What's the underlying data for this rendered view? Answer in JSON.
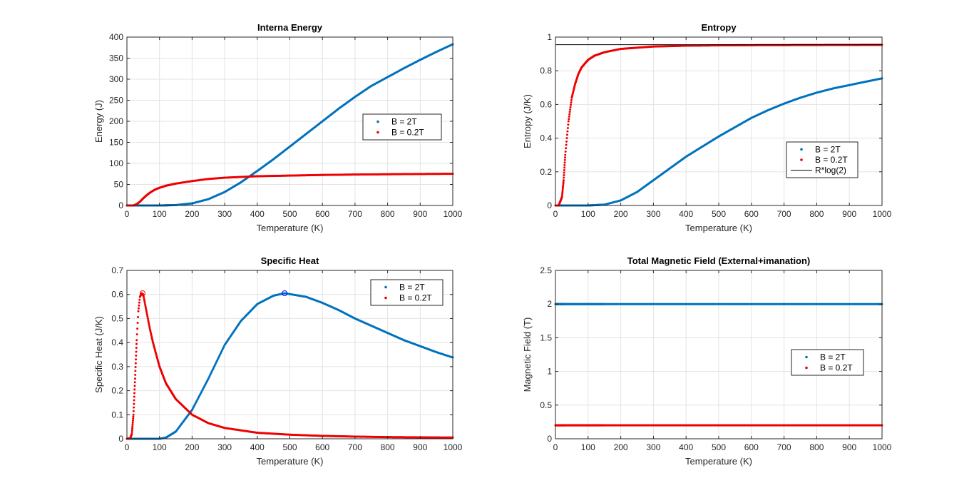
{
  "figure": {
    "colors": {
      "blue": "#0072BD",
      "red": "#EE0000",
      "black": "#000000",
      "grid": "#E3E3E3",
      "axis": "#262626"
    }
  },
  "chart_data": [
    {
      "id": "energy",
      "type": "scatter",
      "title": "Interna Energy",
      "xlabel": "Temperature (K)",
      "ylabel": "Energy (J)",
      "xlim": [
        0,
        1000
      ],
      "ylim": [
        0,
        400
      ],
      "xticks": [
        0,
        100,
        200,
        300,
        400,
        500,
        600,
        700,
        800,
        900,
        1000
      ],
      "yticks": [
        0,
        50,
        100,
        150,
        200,
        250,
        300,
        350,
        400
      ],
      "grid": true,
      "legend_position": "right-middle",
      "series": [
        {
          "name": "B = 2T",
          "color": "#0072BD",
          "marker": "dot",
          "x": [
            0,
            100,
            150,
            200,
            250,
            300,
            350,
            400,
            450,
            500,
            550,
            600,
            650,
            700,
            750,
            800,
            850,
            900,
            950,
            1000
          ],
          "y": [
            0,
            0,
            1,
            5,
            15,
            32,
            55,
            82,
            110,
            140,
            170,
            200,
            230,
            258,
            284,
            305,
            326,
            346,
            365,
            383
          ]
        },
        {
          "name": "B = 0.2T",
          "color": "#EE0000",
          "marker": "dot",
          "x": [
            0,
            20,
            30,
            40,
            50,
            60,
            70,
            80,
            90,
            100,
            120,
            150,
            200,
            250,
            300,
            400,
            500,
            600,
            700,
            800,
            900,
            1000
          ],
          "y": [
            0,
            0,
            3,
            9,
            17,
            24,
            30,
            35,
            39,
            42,
            47,
            52,
            58,
            63,
            66,
            69.5,
            71,
            72.5,
            73.5,
            74.2,
            74.8,
            75.3
          ]
        }
      ]
    },
    {
      "id": "entropy",
      "type": "scatter",
      "title": "Entropy",
      "xlabel": "Temperature (K)",
      "ylabel": "Entropy (J/K)",
      "xlim": [
        0,
        1000
      ],
      "ylim": [
        0,
        1
      ],
      "xticks": [
        0,
        100,
        200,
        300,
        400,
        500,
        600,
        700,
        800,
        900,
        1000
      ],
      "yticks": [
        0,
        0.2,
        0.4,
        0.6,
        0.8,
        1
      ],
      "grid": true,
      "legend_position": "bottom-right",
      "series": [
        {
          "name": "B = 2T",
          "color": "#0072BD",
          "marker": "dot",
          "x": [
            0,
            100,
            150,
            200,
            250,
            300,
            350,
            400,
            450,
            500,
            550,
            600,
            650,
            700,
            750,
            800,
            850,
            900,
            950,
            1000
          ],
          "y": [
            0,
            0,
            0.005,
            0.03,
            0.08,
            0.15,
            0.22,
            0.29,
            0.35,
            0.41,
            0.465,
            0.52,
            0.565,
            0.605,
            0.64,
            0.67,
            0.695,
            0.715,
            0.735,
            0.755
          ]
        },
        {
          "name": "B = 0.2T",
          "color": "#EE0000",
          "marker": "dot",
          "x": [
            0,
            10,
            20,
            25,
            30,
            40,
            50,
            60,
            70,
            80,
            100,
            120,
            150,
            200,
            300,
            400,
            500,
            600,
            800,
            1000
          ],
          "y": [
            0,
            0,
            0.05,
            0.15,
            0.3,
            0.5,
            0.64,
            0.72,
            0.78,
            0.82,
            0.865,
            0.89,
            0.91,
            0.93,
            0.944,
            0.949,
            0.951,
            0.952,
            0.953,
            0.954
          ]
        },
        {
          "name": "R*log(2)",
          "color": "#000000",
          "marker": "line",
          "x": [
            0,
            1000
          ],
          "y": [
            0.955,
            0.955
          ]
        }
      ]
    },
    {
      "id": "specific_heat",
      "type": "scatter",
      "title": "Specific Heat",
      "xlabel": "Temperature (K)",
      "ylabel": "Specific Heat (J/K)",
      "xlim": [
        0,
        1000
      ],
      "ylim": [
        0,
        0.7
      ],
      "xticks": [
        0,
        100,
        200,
        300,
        400,
        500,
        600,
        700,
        800,
        900,
        1000
      ],
      "yticks": [
        0,
        0.1,
        0.2,
        0.3,
        0.4,
        0.5,
        0.6,
        0.7
      ],
      "grid": true,
      "legend_position": "top-right",
      "series": [
        {
          "name": "B = 2T",
          "color": "#0072BD",
          "marker": "dot",
          "x": [
            0,
            100,
            120,
            150,
            200,
            250,
            300,
            350,
            400,
            450,
            484,
            550,
            600,
            650,
            700,
            750,
            800,
            850,
            900,
            950,
            1000
          ],
          "y": [
            0,
            0,
            0.005,
            0.03,
            0.12,
            0.25,
            0.39,
            0.49,
            0.56,
            0.595,
            0.605,
            0.59,
            0.565,
            0.535,
            0.5,
            0.47,
            0.44,
            0.41,
            0.385,
            0.36,
            0.338
          ]
        },
        {
          "name": "B = 0.2T",
          "color": "#EE0000",
          "marker": "dot",
          "x": [
            0,
            10,
            15,
            20,
            25,
            30,
            35,
            40,
            45,
            50,
            60,
            70,
            80,
            100,
            120,
            150,
            200,
            250,
            300,
            400,
            500,
            600,
            700,
            800,
            900,
            1000
          ],
          "y": [
            0,
            0.002,
            0.02,
            0.1,
            0.25,
            0.41,
            0.53,
            0.59,
            0.605,
            0.6,
            0.53,
            0.46,
            0.4,
            0.3,
            0.23,
            0.165,
            0.1,
            0.065,
            0.045,
            0.025,
            0.017,
            0.012,
            0.009,
            0.007,
            0.006,
            0.005
          ]
        }
      ],
      "annotations": [
        {
          "type": "peak-marker",
          "series": "B = 2T",
          "x": 484,
          "y": 0.605,
          "color": "#0000FF"
        },
        {
          "type": "peak-marker",
          "series": "B = 0.2T",
          "x": 48,
          "y": 0.605,
          "color": "#FF0000"
        }
      ]
    },
    {
      "id": "magnetic_field",
      "type": "scatter",
      "title": "Total Magnetic Field (External+imanation)",
      "xlabel": "Temperature (K)",
      "ylabel": "Magnetic Field (T)",
      "xlim": [
        0,
        1000
      ],
      "ylim": [
        0,
        2.5
      ],
      "xticks": [
        0,
        100,
        200,
        300,
        400,
        500,
        600,
        700,
        800,
        900,
        1000
      ],
      "yticks": [
        0,
        0.5,
        1,
        1.5,
        2,
        2.5
      ],
      "grid": true,
      "legend_position": "right-middle",
      "series": [
        {
          "name": "B = 2T",
          "color": "#0072BD",
          "marker": "dot",
          "x": [
            0,
            1000
          ],
          "y": [
            2,
            2
          ]
        },
        {
          "name": "B = 0.2T",
          "color": "#EE0000",
          "marker": "dot",
          "x": [
            0,
            1000
          ],
          "y": [
            0.2,
            0.2
          ]
        }
      ]
    }
  ]
}
